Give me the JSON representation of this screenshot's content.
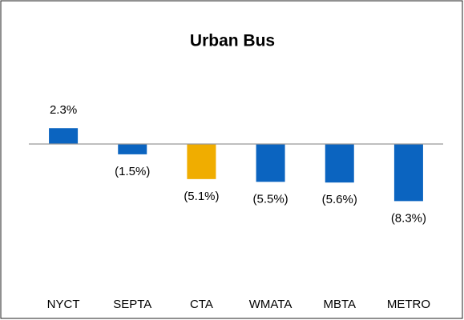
{
  "chart_data": {
    "type": "bar",
    "title": "Urban Bus",
    "categories": [
      "NYCT",
      "SEPTA",
      "CTA",
      "WMATA",
      "MBTA",
      "METRO"
    ],
    "values": [
      2.3,
      -1.5,
      -5.1,
      -5.5,
      -5.6,
      -8.3
    ],
    "value_labels": [
      "2.3%",
      "(1.5%)",
      "(5.1%)",
      "(5.5%)",
      "(5.6%)",
      "(8.3%)"
    ],
    "colors": [
      "#0b64c0",
      "#0b64c0",
      "#f0ad00",
      "#0b64c0",
      "#0b64c0",
      "#0b64c0"
    ]
  }
}
